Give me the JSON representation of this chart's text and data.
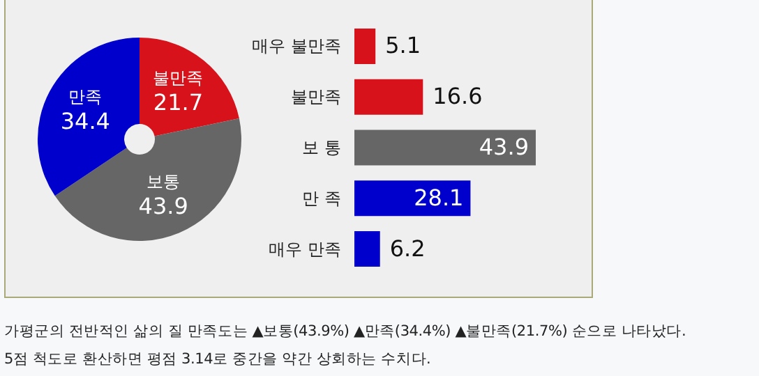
{
  "chart_data": [
    {
      "type": "donut",
      "categories": [
        "불만족",
        "보통",
        "만족"
      ],
      "values": [
        21.7,
        43.9,
        34.4
      ],
      "colors": [
        "#d7121b",
        "#666666",
        "#0000cc"
      ],
      "data_labels": true,
      "legend": false,
      "annotations": [
        "가평군의 전반적인 삶의 질 만족도는 ▲보통(43.9%) ▲만족(34.4%) ▲불만족(21.7%) 순으로 나타났다.",
        "5점 척도로 환산하면 평점 3.14로 중간을 약간 상회하는 수치다."
      ]
    },
    {
      "type": "bar",
      "orientation": "horizontal",
      "categories": [
        "매우 불만족",
        "불만족",
        "보 통",
        "만 족",
        "매우 만족"
      ],
      "values": [
        5.1,
        16.6,
        43.9,
        28.1,
        6.2
      ],
      "colors": [
        "#d7121b",
        "#d7121b",
        "#666666",
        "#0000cc",
        "#0000cc"
      ],
      "data_labels": true,
      "legend": false
    }
  ]
}
